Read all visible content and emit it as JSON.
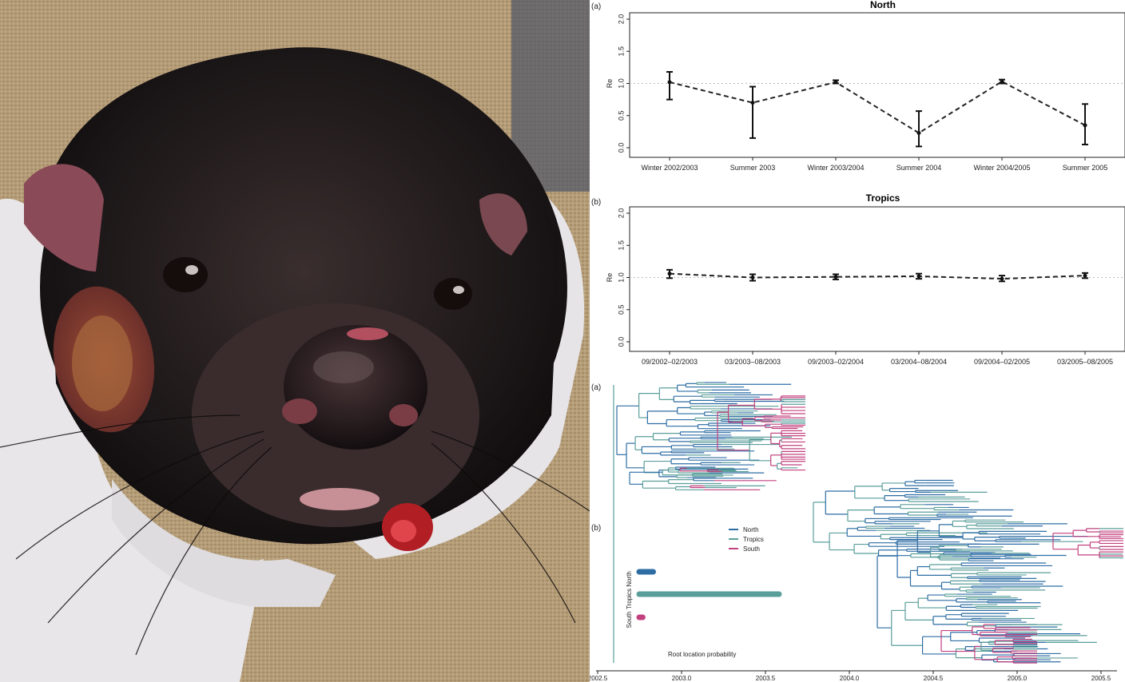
{
  "chart_data": [
    {
      "type": "line",
      "panel": "(a)",
      "title": "North",
      "ylabel": "Re",
      "categories": [
        "Winter 2002/2003",
        "Summer 2003",
        "Winter 2003/2004",
        "Summer 2004",
        "Winter 2004/2005",
        "Summer 2005"
      ],
      "values": [
        1.02,
        0.7,
        1.02,
        0.23,
        1.03,
        0.35
      ],
      "lower": [
        0.75,
        0.15,
        1.0,
        0.02,
        1.0,
        0.05
      ],
      "upper": [
        1.18,
        0.95,
        1.05,
        0.57,
        1.06,
        0.68
      ],
      "ylim": [
        0,
        2.0
      ],
      "yticks": [
        "0.0",
        "0.5",
        "1.0",
        "1.5",
        "2.0"
      ],
      "reference_line": 1.0
    },
    {
      "type": "line",
      "panel": "(b)",
      "title": "Tropics",
      "ylabel": "Re",
      "categories": [
        "09/2002–02/2003",
        "03/2003–08/2003",
        "09/2003–02/2004",
        "03/2004–08/2004",
        "09/2004–02/2005",
        "03/2005–08/2005"
      ],
      "values": [
        1.06,
        1.0,
        1.01,
        1.02,
        0.98,
        1.03
      ],
      "lower": [
        0.99,
        0.95,
        0.97,
        0.98,
        0.94,
        0.99
      ],
      "upper": [
        1.12,
        1.05,
        1.05,
        1.06,
        1.03,
        1.07
      ],
      "ylim": [
        0,
        2.0
      ],
      "yticks": [
        "0.0",
        "0.5",
        "1.0",
        "1.5",
        "2.0"
      ],
      "reference_line": 1.0
    },
    {
      "type": "tree",
      "panel_a": "(a)",
      "panel_b": "(b)",
      "xticks": [
        "2002.5",
        "2003.0",
        "2003.5",
        "2004.0",
        "2004.5",
        "2005.0",
        "2005.5"
      ],
      "legend": [
        {
          "name": "North",
          "color": "#2e6da4"
        },
        {
          "name": "Tropics",
          "color": "#5a9e9a"
        },
        {
          "name": "South",
          "color": "#c2407e"
        }
      ],
      "root_location": {
        "title": "Root location probability",
        "bars": [
          {
            "name": "North",
            "value": 0.08,
            "color": "#2e6da4"
          },
          {
            "name": "Tropics",
            "value": 0.8,
            "color": "#5a9e9a"
          },
          {
            "name": "South",
            "value": 0.02,
            "color": "#c2407e"
          }
        ]
      }
    }
  ],
  "colors": {
    "north": "#2e6da4",
    "tropics": "#5a9e9a",
    "south": "#c2407e"
  }
}
